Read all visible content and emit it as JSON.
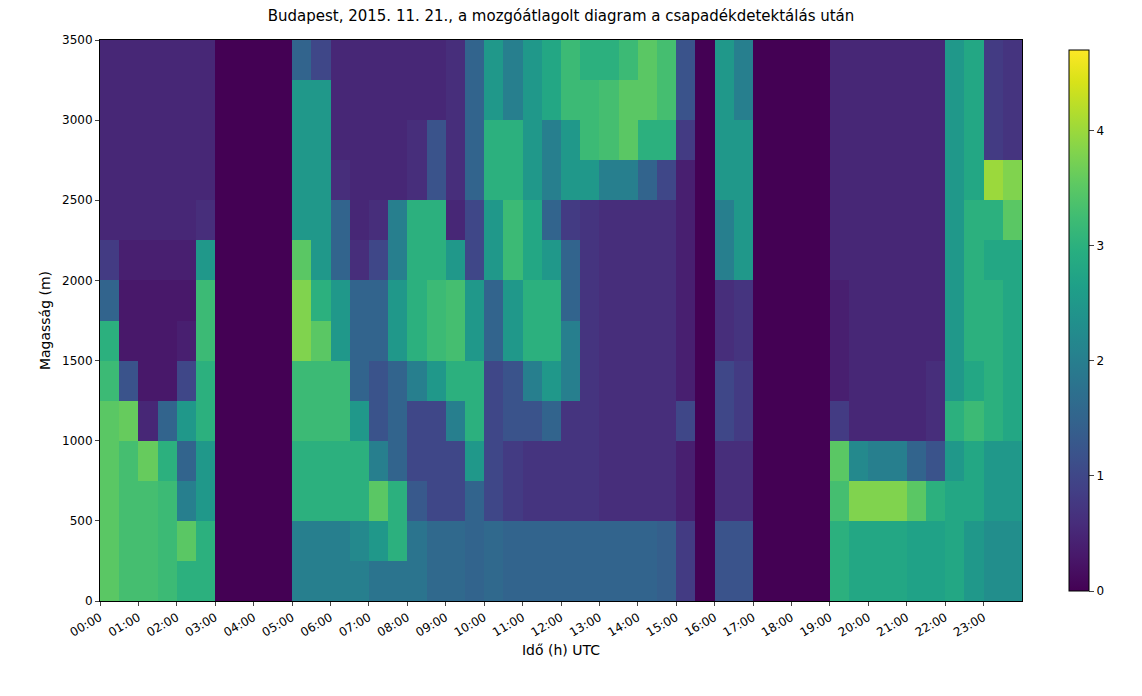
{
  "chart_data": {
    "type": "heatmap",
    "title": "Budapest, 2015. 11. 21., a mozgóátlagolt diagram a csapadékdetektálás után",
    "xlabel": "Idő (h) UTC",
    "ylabel": "Magasság (m)",
    "grid": false,
    "xlim": [
      0,
      24
    ],
    "xticks": [
      {
        "value": 0,
        "label": "00:00"
      },
      {
        "value": 1,
        "label": "01:00"
      },
      {
        "value": 2,
        "label": "02:00"
      },
      {
        "value": 3,
        "label": "03:00"
      },
      {
        "value": 4,
        "label": "04:00"
      },
      {
        "value": 5,
        "label": "05:00"
      },
      {
        "value": 6,
        "label": "06:00"
      },
      {
        "value": 7,
        "label": "07:00"
      },
      {
        "value": 8,
        "label": "08:00"
      },
      {
        "value": 9,
        "label": "09:00"
      },
      {
        "value": 10,
        "label": "10:00"
      },
      {
        "value": 11,
        "label": "11:00"
      },
      {
        "value": 12,
        "label": "12:00"
      },
      {
        "value": 13,
        "label": "13:00"
      },
      {
        "value": 14,
        "label": "14:00"
      },
      {
        "value": 15,
        "label": "15:00"
      },
      {
        "value": 16,
        "label": "16:00"
      },
      {
        "value": 17,
        "label": "17:00"
      },
      {
        "value": 18,
        "label": "18:00"
      },
      {
        "value": 19,
        "label": "19:00"
      },
      {
        "value": 20,
        "label": "20:00"
      },
      {
        "value": 21,
        "label": "21:00"
      },
      {
        "value": 22,
        "label": "22:00"
      },
      {
        "value": 23,
        "label": "23:00"
      }
    ],
    "ylim": [
      0,
      3500
    ],
    "yticks": [
      0,
      500,
      1000,
      1500,
      2000,
      2500,
      3000,
      3500
    ],
    "colorbar": {
      "range": [
        0,
        4.7
      ],
      "ticks": [
        0,
        1,
        2,
        3,
        4
      ]
    },
    "x": [
      0.25,
      0.75,
      1.25,
      1.75,
      2.25,
      2.75,
      3.25,
      3.75,
      4.25,
      4.75,
      5.25,
      5.75,
      6.25,
      6.75,
      7.25,
      7.75,
      8.25,
      8.75,
      9.25,
      9.75,
      10.25,
      10.75,
      11.25,
      11.75,
      12.25,
      12.75,
      13.25,
      13.75,
      14.25,
      14.75,
      15.25,
      15.75,
      16.25,
      16.75,
      17.25,
      17.75,
      18.25,
      18.75,
      19.25,
      19.75,
      20.25,
      20.75,
      21.25,
      21.75,
      22.25,
      22.75,
      23.25,
      23.75
    ],
    "y": [
      125,
      375,
      625,
      875,
      1125,
      1375,
      1625,
      1875,
      2125,
      2375,
      2625,
      2875,
      3125,
      3375
    ],
    "z": [
      [
        3.5,
        3.3,
        3.3,
        3.2,
        3.0,
        3.0,
        0,
        0,
        0,
        0,
        2.0,
        2.0,
        2.0,
        2.0,
        1.8,
        1.8,
        1.8,
        1.6,
        1.6,
        1.5,
        1.6,
        1.5,
        1.5,
        1.5,
        1.5,
        1.5,
        1.5,
        1.5,
        1.5,
        1.4,
        0.8,
        0,
        1.2,
        1.2,
        0,
        0,
        0,
        0,
        3.0,
        2.8,
        2.8,
        2.8,
        2.7,
        2.7,
        2.8,
        2.5,
        2.3,
        2.3
      ],
      [
        3.5,
        3.3,
        3.3,
        3.2,
        3.5,
        3.0,
        0,
        0,
        0,
        0,
        2.0,
        2.0,
        2.0,
        2.2,
        2.5,
        3.0,
        1.8,
        1.6,
        1.6,
        1.5,
        1.6,
        1.5,
        1.5,
        1.5,
        1.5,
        1.5,
        1.5,
        1.5,
        1.5,
        1.4,
        0.8,
        0,
        1.2,
        1.2,
        0,
        0,
        0,
        0,
        3.0,
        2.8,
        2.8,
        2.8,
        2.7,
        2.7,
        2.8,
        2.5,
        2.3,
        2.3
      ],
      [
        3.5,
        3.3,
        3.3,
        3.2,
        2.0,
        2.5,
        0,
        0,
        0,
        0,
        3.0,
        3.0,
        3.0,
        3.0,
        3.5,
        3.0,
        1.3,
        1.0,
        1.0,
        1.5,
        1.0,
        0.8,
        0.7,
        0.7,
        0.7,
        0.7,
        0.6,
        0.6,
        0.6,
        0.6,
        0.4,
        0,
        0.6,
        0.6,
        0,
        0,
        0,
        0,
        3.3,
        3.8,
        3.8,
        3.8,
        3.5,
        3.0,
        2.8,
        2.8,
        2.5,
        2.5
      ],
      [
        3.5,
        3.3,
        3.6,
        3.0,
        1.5,
        2.5,
        0,
        0,
        0,
        0,
        3.0,
        3.0,
        3.0,
        3.0,
        2.0,
        1.5,
        1.0,
        1.0,
        1.0,
        2.5,
        1.0,
        0.8,
        0.7,
        0.7,
        0.7,
        0.7,
        0.6,
        0.6,
        0.6,
        0.6,
        0.4,
        0,
        0.6,
        0.6,
        0,
        0,
        0,
        0,
        3.5,
        2.2,
        2.0,
        2.0,
        1.5,
        1.2,
        2.5,
        2.8,
        2.5,
        2.5
      ],
      [
        3.5,
        3.6,
        0.5,
        1.5,
        2.5,
        3.0,
        0,
        0,
        0,
        0,
        3.2,
        3.2,
        3.2,
        2.5,
        1.2,
        1.5,
        1.0,
        1.0,
        2.0,
        3.0,
        1.0,
        1.2,
        1.2,
        1.5,
        0.7,
        0.7,
        0.6,
        0.6,
        0.6,
        0.6,
        1.0,
        0,
        1.0,
        0.8,
        0,
        0,
        0,
        0,
        0.8,
        0.5,
        0.5,
        0.5,
        0.5,
        0.6,
        3.0,
        3.2,
        3.0,
        2.8
      ],
      [
        3.2,
        1.2,
        0.3,
        0.3,
        1.0,
        3.0,
        0,
        0,
        0,
        0,
        3.2,
        3.2,
        3.2,
        1.5,
        1.2,
        1.5,
        2.0,
        2.5,
        3.0,
        3.0,
        1.0,
        1.2,
        2.0,
        2.5,
        2.0,
        0.7,
        0.6,
        0.6,
        0.6,
        0.6,
        0.4,
        0,
        1.0,
        0.8,
        0,
        0,
        0,
        0,
        0.4,
        0.5,
        0.5,
        0.5,
        0.5,
        0.6,
        2.5,
        2.8,
        3.0,
        2.8
      ],
      [
        3.0,
        0.3,
        0.3,
        0.3,
        0.4,
        3.2,
        0,
        0,
        0,
        0,
        3.8,
        3.5,
        2.5,
        1.5,
        1.5,
        2.5,
        3.0,
        3.2,
        3.3,
        2.5,
        1.5,
        2.5,
        3.0,
        3.0,
        2.0,
        0.7,
        0.6,
        0.6,
        0.6,
        0.6,
        0.4,
        0,
        0.6,
        0.7,
        0,
        0,
        0,
        0,
        0.4,
        0.5,
        0.5,
        0.5,
        0.5,
        0.5,
        2.5,
        3.0,
        3.0,
        2.8
      ],
      [
        1.5,
        0.3,
        0.3,
        0.3,
        0.3,
        3.2,
        0,
        0,
        0,
        0,
        3.8,
        3.0,
        2.5,
        1.5,
        1.5,
        2.5,
        3.0,
        3.2,
        3.3,
        2.5,
        1.5,
        2.5,
        3.0,
        3.0,
        1.5,
        0.7,
        0.6,
        0.6,
        0.6,
        0.6,
        0.4,
        0,
        0.6,
        0.7,
        0,
        0,
        0,
        0,
        0.4,
        0.5,
        0.5,
        0.5,
        0.5,
        0.5,
        2.5,
        3.0,
        3.0,
        2.8
      ],
      [
        0.8,
        0.4,
        0.4,
        0.4,
        0.4,
        2.5,
        0,
        0,
        0,
        0,
        3.5,
        2.5,
        1.5,
        0.6,
        1.0,
        2.0,
        3.0,
        3.0,
        2.5,
        1.0,
        2.5,
        3.2,
        2.8,
        2.5,
        1.5,
        0.7,
        0.6,
        0.6,
        0.6,
        0.6,
        0.4,
        0,
        2.0,
        2.5,
        0,
        0,
        0,
        0,
        0.5,
        0.5,
        0.5,
        0.5,
        0.5,
        0.5,
        2.5,
        3.0,
        2.8,
        2.8
      ],
      [
        0.5,
        0.5,
        0.5,
        0.5,
        0.5,
        0.6,
        0,
        0,
        0,
        0,
        2.5,
        2.5,
        1.5,
        0.5,
        0.6,
        2.0,
        3.0,
        3.0,
        0.5,
        1.0,
        2.5,
        3.2,
        2.8,
        1.5,
        0.8,
        0.7,
        0.6,
        0.6,
        0.6,
        0.6,
        0.4,
        0,
        2.0,
        2.5,
        0,
        0,
        0,
        0,
        0.5,
        0.5,
        0.5,
        0.5,
        0.5,
        0.5,
        2.5,
        3.0,
        3.0,
        3.5
      ],
      [
        0.5,
        0.5,
        0.5,
        0.5,
        0.5,
        0.5,
        0,
        0,
        0,
        0,
        2.5,
        2.5,
        0.6,
        0.5,
        0.5,
        0.5,
        0.6,
        1.2,
        0.6,
        1.5,
        3.0,
        3.0,
        2.5,
        2.0,
        2.5,
        2.5,
        2.0,
        2.0,
        1.5,
        1.0,
        0.4,
        0,
        2.5,
        2.5,
        0,
        0,
        0,
        0,
        0.5,
        0.5,
        0.5,
        0.5,
        0.5,
        0.5,
        2.5,
        2.8,
        4.0,
        3.8
      ],
      [
        0.5,
        0.5,
        0.5,
        0.5,
        0.5,
        0.5,
        0,
        0,
        0,
        0,
        2.5,
        2.5,
        0.5,
        0.5,
        0.5,
        0.5,
        0.6,
        1.2,
        0.6,
        1.5,
        3.0,
        3.0,
        2.5,
        2.0,
        2.5,
        3.2,
        3.3,
        3.5,
        3.0,
        3.0,
        0.8,
        0,
        2.5,
        2.5,
        0,
        0,
        0,
        0,
        0.5,
        0.5,
        0.5,
        0.5,
        0.5,
        0.5,
        2.5,
        2.8,
        0.8,
        0.7
      ],
      [
        0.5,
        0.5,
        0.5,
        0.5,
        0.5,
        0.5,
        0,
        0,
        0,
        0,
        2.5,
        2.5,
        0.5,
        0.5,
        0.5,
        0.5,
        0.5,
        0.5,
        0.6,
        1.5,
        2.5,
        2.0,
        2.5,
        2.8,
        3.2,
        3.2,
        3.3,
        3.5,
        3.5,
        3.3,
        1.2,
        0,
        2.5,
        2.0,
        0,
        0,
        0,
        0,
        0.5,
        0.5,
        0.5,
        0.5,
        0.5,
        0.5,
        2.5,
        2.8,
        0.8,
        0.7
      ],
      [
        0.5,
        0.5,
        0.5,
        0.5,
        0.5,
        0.5,
        0,
        0,
        0,
        0,
        1.5,
        1.0,
        0.5,
        0.5,
        0.5,
        0.5,
        0.5,
        0.5,
        0.6,
        1.5,
        2.5,
        2.0,
        2.5,
        2.8,
        3.2,
        3.0,
        3.0,
        3.2,
        3.5,
        3.3,
        1.2,
        0,
        2.5,
        2.0,
        0,
        0,
        0,
        0,
        0.5,
        0.5,
        0.5,
        0.5,
        0.5,
        0.5,
        2.5,
        2.8,
        0.8,
        0.7
      ]
    ]
  }
}
